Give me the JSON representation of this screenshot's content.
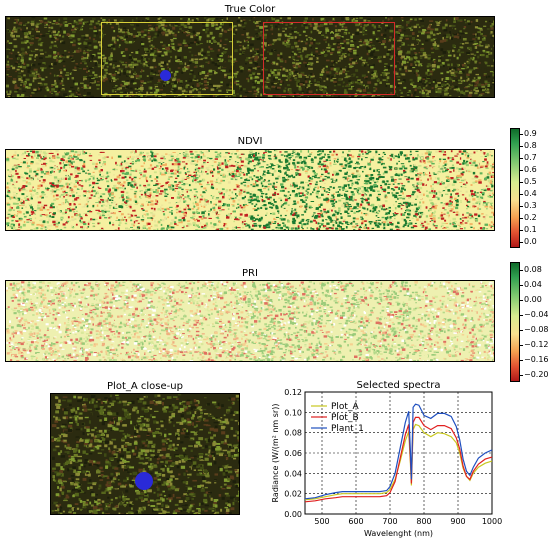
{
  "colors": {
    "true_color_bg": "#2a2a12",
    "plot_a_box": "#d8cf3a",
    "plot_b_box": "#d42a2a",
    "plant_marker": "#2a2ad8",
    "ndvi_low": "#c02020",
    "ndvi_mid": "#f5f0a0",
    "ndvi_high": "#1a7a30"
  },
  "true_color": {
    "title": "True Color"
  },
  "ndvi": {
    "title": "NDVI",
    "colorbar_ticks": [
      "0.9",
      "0.8",
      "0.7",
      "0.6",
      "0.5",
      "0.4",
      "0.3",
      "0.2",
      "0.1",
      "0.0"
    ]
  },
  "pri": {
    "title": "PRI",
    "colorbar_ticks": [
      "0.08",
      "0.04",
      "0.00",
      "−0.04",
      "−0.08",
      "−0.12",
      "−0.16",
      "−0.20"
    ]
  },
  "closeup": {
    "title": "Plot_A close-up"
  },
  "chart_data": {
    "type": "line",
    "title": "Selected spectra",
    "xlabel": "Wavelenght (nm)",
    "ylabel": "Radiance (W/(m² nm sr))",
    "xlim": [
      450,
      1000
    ],
    "ylim": [
      0.0,
      0.12
    ],
    "xticks": [
      "500",
      "600",
      "700",
      "800",
      "900",
      "1000"
    ],
    "yticks": [
      "0.00",
      "0.02",
      "0.04",
      "0.06",
      "0.08",
      "0.10",
      "0.12"
    ],
    "grid": true,
    "legend": "top-left",
    "x": [
      450,
      480,
      510,
      540,
      560,
      580,
      610,
      640,
      670,
      690,
      700,
      715,
      730,
      745,
      755,
      760,
      763,
      768,
      775,
      785,
      800,
      820,
      840,
      860,
      880,
      895,
      905,
      915,
      925,
      935,
      945,
      960,
      980,
      1000
    ],
    "series": [
      {
        "name": "Plot_A",
        "color": "#c8c820",
        "values": [
          0.014,
          0.015,
          0.017,
          0.019,
          0.02,
          0.02,
          0.02,
          0.02,
          0.02,
          0.021,
          0.024,
          0.034,
          0.052,
          0.072,
          0.081,
          0.05,
          0.028,
          0.083,
          0.088,
          0.087,
          0.08,
          0.076,
          0.08,
          0.079,
          0.076,
          0.07,
          0.06,
          0.045,
          0.037,
          0.033,
          0.04,
          0.046,
          0.05,
          0.052
        ]
      },
      {
        "name": "Plot_B",
        "color": "#e02020",
        "values": [
          0.012,
          0.013,
          0.015,
          0.016,
          0.017,
          0.017,
          0.017,
          0.017,
          0.017,
          0.018,
          0.021,
          0.032,
          0.055,
          0.078,
          0.088,
          0.054,
          0.03,
          0.09,
          0.095,
          0.095,
          0.087,
          0.083,
          0.087,
          0.087,
          0.084,
          0.075,
          0.064,
          0.047,
          0.037,
          0.034,
          0.042,
          0.049,
          0.054,
          0.056
        ]
      },
      {
        "name": "Plant_1",
        "color": "#1f4fbf",
        "values": [
          0.015,
          0.016,
          0.019,
          0.021,
          0.022,
          0.022,
          0.022,
          0.022,
          0.022,
          0.023,
          0.027,
          0.04,
          0.065,
          0.09,
          0.101,
          0.062,
          0.034,
          0.105,
          0.108,
          0.107,
          0.097,
          0.094,
          0.099,
          0.099,
          0.096,
          0.086,
          0.073,
          0.054,
          0.042,
          0.038,
          0.046,
          0.055,
          0.06,
          0.063
        ]
      }
    ]
  }
}
